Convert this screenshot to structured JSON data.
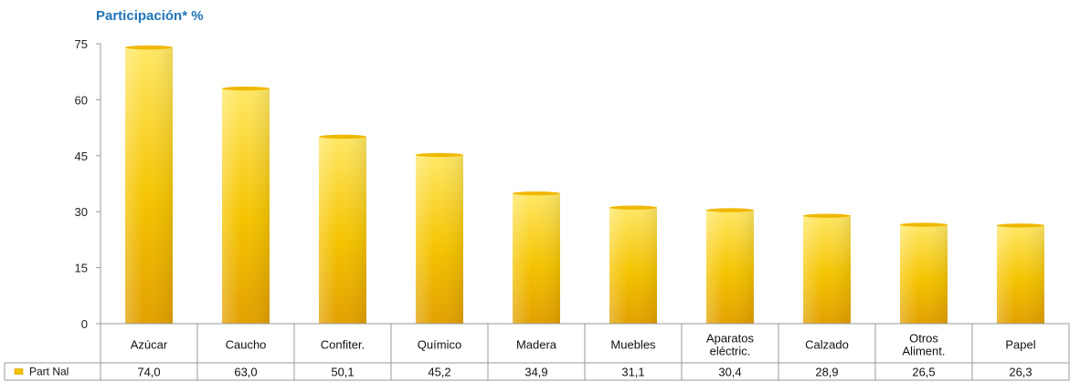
{
  "chart_data": {
    "type": "bar",
    "title": "Participación* %",
    "categories": [
      [
        "Azúcar"
      ],
      [
        "Caucho"
      ],
      [
        "Confiter."
      ],
      [
        "Químico"
      ],
      [
        "Madera"
      ],
      [
        "Muebles"
      ],
      [
        "Aparatos",
        "eléctric."
      ],
      [
        "Calzado"
      ],
      [
        "Otros",
        "Aliment."
      ],
      [
        "Papel"
      ]
    ],
    "series": [
      {
        "name": "Part Nal",
        "values": [
          74.0,
          63.0,
          50.1,
          45.2,
          34.9,
          31.1,
          30.4,
          28.9,
          26.5,
          26.3
        ],
        "labels": [
          "74,0",
          "63,0",
          "50,1",
          "45,2",
          "34,9",
          "31,1",
          "30,4",
          "28,9",
          "26,5",
          "26,3"
        ]
      }
    ],
    "yticks": [
      0,
      15,
      30,
      45,
      60,
      75
    ],
    "ylim": [
      0,
      75
    ],
    "grid": false,
    "legend": "bottom-left, inside data table",
    "colors": {
      "bar_light": "#ffe866",
      "bar_mid": "#f5c400",
      "bar_dark": "#e2a000",
      "title": "#1f74b8"
    }
  }
}
